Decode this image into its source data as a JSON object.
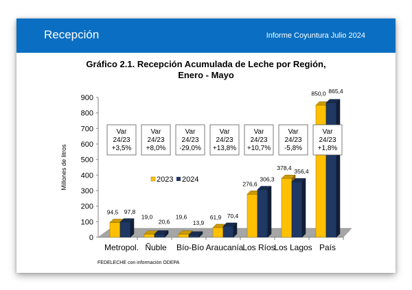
{
  "header": {
    "title": "Recepción",
    "subtitle": "Informe Coyuntura Julio 2024"
  },
  "chart_title_line1": "Gráfico 2.1. Recepción Acumulada de Leche por Región,",
  "chart_title_line2": "Enero - Mayo",
  "source": "FEDELECHE con información ODEPA",
  "colors": {
    "y2023": "#ffc000",
    "y2024": "#1f3864",
    "header": "#0a6fc2",
    "floor": "#a6a6a6"
  },
  "chart_data": {
    "type": "bar",
    "title": "Gráfico 2.1. Recepción Acumulada de Leche por Región, Enero - Mayo",
    "xlabel": "",
    "ylabel": "Millones de litros",
    "ylim": [
      0,
      900
    ],
    "yticks": [
      0,
      100,
      200,
      300,
      400,
      500,
      600,
      700,
      800,
      900
    ],
    "categories": [
      "Metropol.",
      "Ñuble",
      "Bío-Bío",
      "Araucanía",
      "Los Ríos",
      "Los Lagos",
      "País"
    ],
    "series": [
      {
        "name": "2023",
        "values": [
          94.5,
          19.0,
          19.6,
          61.9,
          276.6,
          378.4,
          850.0
        ],
        "labels": [
          "94,5",
          "19,0",
          "19,6",
          "61,9",
          "276,6",
          "378,4",
          "850,0"
        ]
      },
      {
        "name": "2024",
        "values": [
          97.8,
          20.6,
          13.9,
          70.4,
          306.3,
          356.4,
          865.4
        ],
        "labels": [
          "97,8",
          "20,6",
          "13,9",
          "70,4",
          "306,3",
          "356,4",
          "865,4"
        ]
      }
    ],
    "annotations": [
      {
        "line1": "Var",
        "line2": "24/23",
        "line3": "+3,5%"
      },
      {
        "line1": "Var",
        "line2": "24/23",
        "line3": "+8,0%"
      },
      {
        "line1": "Var",
        "line2": "24/23",
        "line3": "-29,0%"
      },
      {
        "line1": "Var",
        "line2": "24/23",
        "line3": "+13,8%"
      },
      {
        "line1": "Var",
        "line2": "24/23",
        "line3": "+10,7%"
      },
      {
        "line1": "Var",
        "line2": "24/23",
        "line3": "-5,8%"
      },
      {
        "line1": "Var",
        "line2": "24/23",
        "line3": "+1,8%"
      }
    ],
    "legend": {
      "position": "center-left",
      "entries": [
        "2023",
        "2024"
      ]
    },
    "grid": false
  }
}
